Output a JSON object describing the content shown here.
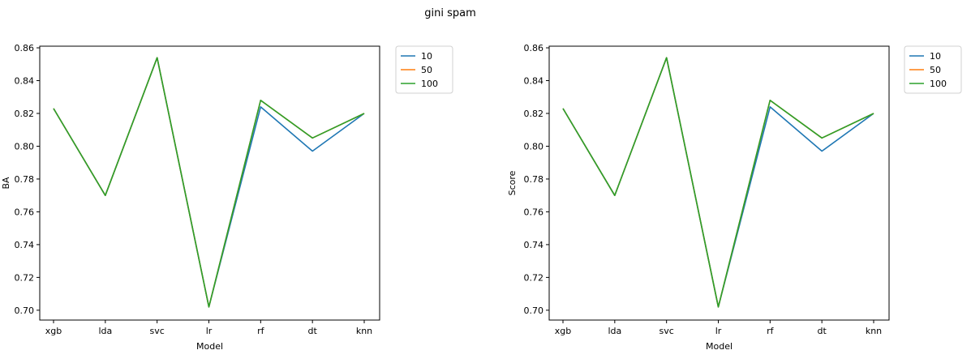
{
  "figure": {
    "suptitle": "gini spam"
  },
  "chart_data": [
    {
      "type": "line",
      "title": "",
      "xlabel": "Model",
      "ylabel": "BA",
      "categories": [
        "xgb",
        "lda",
        "svc",
        "lr",
        "rf",
        "dt",
        "knn"
      ],
      "ylim": [
        0.694,
        0.861
      ],
      "yticks": [
        0.7,
        0.72,
        0.74,
        0.76,
        0.78,
        0.8,
        0.82,
        0.84,
        0.86
      ],
      "grid": false,
      "legend_position": "outside-top-right",
      "series": [
        {
          "name": "10",
          "color": "#1f77b4",
          "values": [
            0.823,
            0.77,
            0.854,
            0.702,
            0.824,
            0.797,
            0.82
          ]
        },
        {
          "name": "50",
          "color": "#ff7f0e",
          "values": [
            0.823,
            0.77,
            0.854,
            0.702,
            0.828,
            0.805,
            0.82
          ]
        },
        {
          "name": "100",
          "color": "#2ca02c",
          "values": [
            0.823,
            0.77,
            0.854,
            0.702,
            0.828,
            0.805,
            0.82
          ]
        }
      ]
    },
    {
      "type": "line",
      "title": "",
      "xlabel": "Model",
      "ylabel": "Score",
      "categories": [
        "xgb",
        "lda",
        "svc",
        "lr",
        "rf",
        "dt",
        "knn"
      ],
      "ylim": [
        0.694,
        0.861
      ],
      "yticks": [
        0.7,
        0.72,
        0.74,
        0.76,
        0.78,
        0.8,
        0.82,
        0.84,
        0.86
      ],
      "grid": false,
      "legend_position": "outside-top-right",
      "series": [
        {
          "name": "10",
          "color": "#1f77b4",
          "values": [
            0.823,
            0.77,
            0.854,
            0.702,
            0.824,
            0.797,
            0.82
          ]
        },
        {
          "name": "50",
          "color": "#ff7f0e",
          "values": [
            0.823,
            0.77,
            0.854,
            0.702,
            0.828,
            0.805,
            0.82
          ]
        },
        {
          "name": "100",
          "color": "#2ca02c",
          "values": [
            0.823,
            0.77,
            0.854,
            0.702,
            0.828,
            0.805,
            0.82
          ]
        }
      ]
    }
  ]
}
